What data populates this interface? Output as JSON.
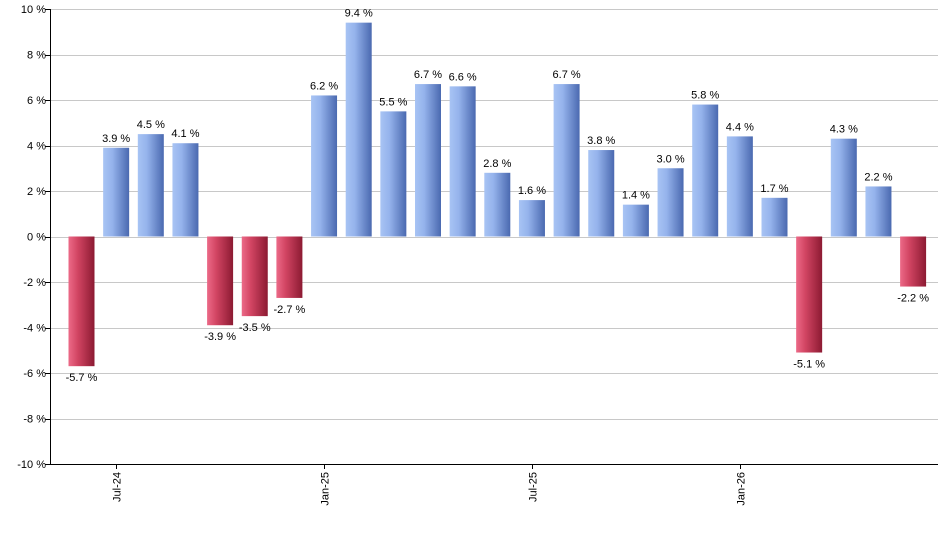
{
  "chart_data": {
    "type": "bar",
    "unit_suffix": " %",
    "ylim": [
      -10,
      10
    ],
    "yticks": [
      10,
      8,
      6,
      4,
      2,
      0,
      -2,
      -4,
      -6,
      -8,
      -10
    ],
    "grid": true,
    "legend": "none",
    "x_tick_labels": [
      {
        "label": "Jul-24",
        "bar_index": 1
      },
      {
        "label": "Jan-25",
        "bar_index": 7
      },
      {
        "label": "Jul-25",
        "bar_index": 13
      },
      {
        "label": "Jan-26",
        "bar_index": 19
      }
    ],
    "values": [
      -5.7,
      3.9,
      4.5,
      4.1,
      -3.9,
      -3.5,
      -2.7,
      6.2,
      9.4,
      5.5,
      6.7,
      6.6,
      2.8,
      1.6,
      6.7,
      3.8,
      1.4,
      3.0,
      5.8,
      4.4,
      1.7,
      -5.1,
      4.3,
      2.2,
      -2.2
    ],
    "labels": [
      "-5.7 %",
      "3.9 %",
      "4.5 %",
      "4.1 %",
      "-3.9 %",
      "-3.5 %",
      "-2.7 %",
      "6.2 %",
      "9.4 %",
      "5.5 %",
      "6.7 %",
      "6.6 %",
      "2.8 %",
      "1.6 %",
      "6.7 %",
      "3.8 %",
      "1.4 %",
      "3.0 %",
      "5.8 %",
      "4.4 %",
      "1.7 %",
      "-5.1 %",
      "4.3 %",
      "2.2 %",
      "-2.2 %"
    ],
    "colors": {
      "positive_light": "#a8c4f4",
      "positive_dark": "#4a69b0",
      "negative_light": "#ec6a88",
      "negative_dark": "#8c1a32",
      "grid": "#c8c8c8",
      "axis": "#000000"
    }
  }
}
